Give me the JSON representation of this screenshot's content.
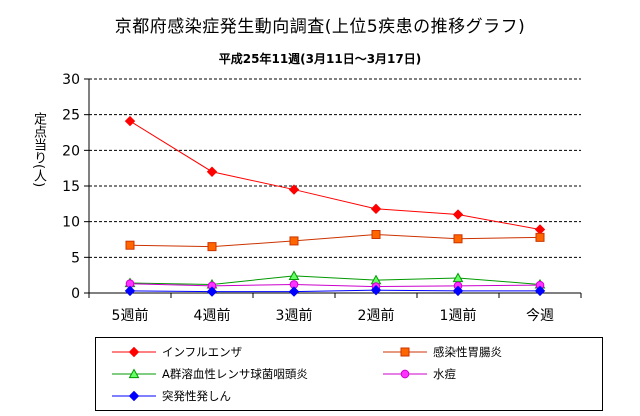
{
  "title": "京都府感染症発生動向調査(上位5疾患の推移グラフ)",
  "subtitle": "平成25年11週(3月11日～3月17日)",
  "ylabel": "定点当り(人)",
  "chart_data": {
    "type": "line",
    "categories": [
      "5週前",
      "4週前",
      "3週前",
      "2週前",
      "1週前",
      "今週"
    ],
    "ylim": [
      0,
      30
    ],
    "yticks": [
      0,
      5,
      10,
      15,
      20,
      25,
      30
    ],
    "grid": "horizontal dashed",
    "legend_position": "bottom",
    "series": [
      {
        "name": "インフルエンザ",
        "color": "#ff0000",
        "marker": "diamond",
        "fill": "#ff0000",
        "values": [
          24.1,
          17.0,
          14.5,
          11.8,
          11.0,
          8.9
        ]
      },
      {
        "name": "感染性胃腸炎",
        "color": "#cc3300",
        "marker": "square",
        "fill": "#ff6600",
        "values": [
          6.7,
          6.5,
          7.3,
          8.2,
          7.6,
          7.8
        ]
      },
      {
        "name": "A群溶血性レンサ球菌咽頭炎",
        "color": "#009900",
        "marker": "triangle",
        "fill": "#66ff66",
        "values": [
          1.4,
          1.2,
          2.4,
          1.8,
          2.1,
          1.2
        ]
      },
      {
        "name": "水痘",
        "color": "#cc00cc",
        "marker": "circle",
        "fill": "#ff33ff",
        "values": [
          1.3,
          1.0,
          1.2,
          0.9,
          1.0,
          1.1
        ]
      },
      {
        "name": "突発性発しん",
        "color": "#0000ff",
        "marker": "diamond",
        "fill": "#0000ff",
        "values": [
          0.3,
          0.2,
          0.2,
          0.4,
          0.3,
          0.3
        ]
      }
    ]
  }
}
